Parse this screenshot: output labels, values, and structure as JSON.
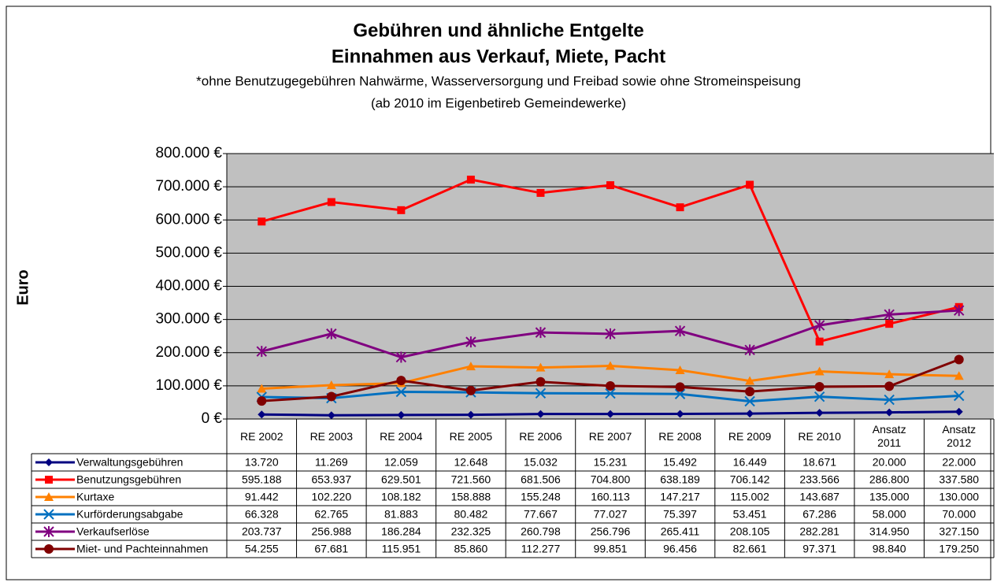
{
  "chart_data": {
    "type": "line",
    "title": [
      "Gebühren und ähnliche Entgelte",
      "Einnahmen aus Verkauf, Miete, Pacht"
    ],
    "notes": [
      "*ohne Benutzugegebühren Nahwärme, Wasserversorgung und Freibad sowie ohne Stromeinspeisung",
      "(ab 2010 im Eigenbetireb Gemeindewerke)"
    ],
    "ylabel": "Euro",
    "categories": [
      "RE 2002",
      "RE 2003",
      "RE 2004",
      "RE 2005",
      "RE 2006",
      "RE 2007",
      "RE 2008",
      "RE 2009",
      "RE 2010",
      "Ansatz 2011",
      "Ansatz 2012"
    ],
    "ylim": [
      0,
      800000
    ],
    "yticks": [
      {
        "value": 0,
        "label": "0 €"
      },
      {
        "value": 100000,
        "label": "100.000 €"
      },
      {
        "value": 200000,
        "label": "200.000 €"
      },
      {
        "value": 300000,
        "label": "300.000 €"
      },
      {
        "value": 400000,
        "label": "400.000 €"
      },
      {
        "value": 500000,
        "label": "500.000 €"
      },
      {
        "value": 600000,
        "label": "600.000 €"
      },
      {
        "value": 700000,
        "label": "700.000 €"
      },
      {
        "value": 800000,
        "label": "800.000 €"
      }
    ],
    "grid": true,
    "series": [
      {
        "name": "Verwaltungsgebühren",
        "color": "#000080",
        "marker": "diamond",
        "values": [
          13720,
          11269,
          12059,
          12648,
          15032,
          15231,
          15492,
          16449,
          18671,
          20000,
          22000
        ],
        "value_labels": [
          "13.720",
          "11.269",
          "12.059",
          "12.648",
          "15.032",
          "15.231",
          "15.492",
          "16.449",
          "18.671",
          "20.000",
          "22.000"
        ]
      },
      {
        "name": "Benutzungsgebühren",
        "color": "#ff0000",
        "marker": "square",
        "values": [
          595188,
          653937,
          629501,
          721560,
          681506,
          704800,
          638189,
          706142,
          233566,
          286800,
          337580
        ],
        "value_labels": [
          "595.188",
          "653.937",
          "629.501",
          "721.560",
          "681.506",
          "704.800",
          "638.189",
          "706.142",
          "233.566",
          "286.800",
          "337.580"
        ]
      },
      {
        "name": "Kurtaxe",
        "color": "#ff8000",
        "marker": "triangle",
        "values": [
          91442,
          102220,
          108182,
          158888,
          155248,
          160113,
          147217,
          115002,
          143687,
          135000,
          130000
        ],
        "value_labels": [
          "91.442",
          "102.220",
          "108.182",
          "158.888",
          "155.248",
          "160.113",
          "147.217",
          "115.002",
          "143.687",
          "135.000",
          "130.000"
        ]
      },
      {
        "name": "Kurförderungsabgabe",
        "color": "#0070c0",
        "marker": "x",
        "values": [
          66328,
          62765,
          81883,
          80482,
          77667,
          77027,
          75397,
          53451,
          67286,
          58000,
          70000
        ],
        "value_labels": [
          "66.328",
          "62.765",
          "81.883",
          "80.482",
          "77.667",
          "77.027",
          "75.397",
          "53.451",
          "67.286",
          "58.000",
          "70.000"
        ]
      },
      {
        "name": "Verkaufserlöse",
        "color": "#800080",
        "marker": "star",
        "values": [
          203737,
          256988,
          186284,
          232325,
          260798,
          256796,
          265411,
          208105,
          282281,
          314950,
          327150
        ],
        "value_labels": [
          "203.737",
          "256.988",
          "186.284",
          "232.325",
          "260.798",
          "256.796",
          "265.411",
          "208.105",
          "282.281",
          "314.950",
          "327.150"
        ]
      },
      {
        "name": "Miet- und Pachteinnahmen",
        "color": "#800000",
        "marker": "circle",
        "values": [
          54255,
          67681,
          115951,
          85860,
          112277,
          99851,
          96456,
          82661,
          97371,
          98840,
          179250
        ],
        "value_labels": [
          "54.255",
          "67.681",
          "115.951",
          "85.860",
          "112.277",
          "99.851",
          "96.456",
          "82.661",
          "97.371",
          "98.840",
          "179.250"
        ]
      }
    ]
  }
}
